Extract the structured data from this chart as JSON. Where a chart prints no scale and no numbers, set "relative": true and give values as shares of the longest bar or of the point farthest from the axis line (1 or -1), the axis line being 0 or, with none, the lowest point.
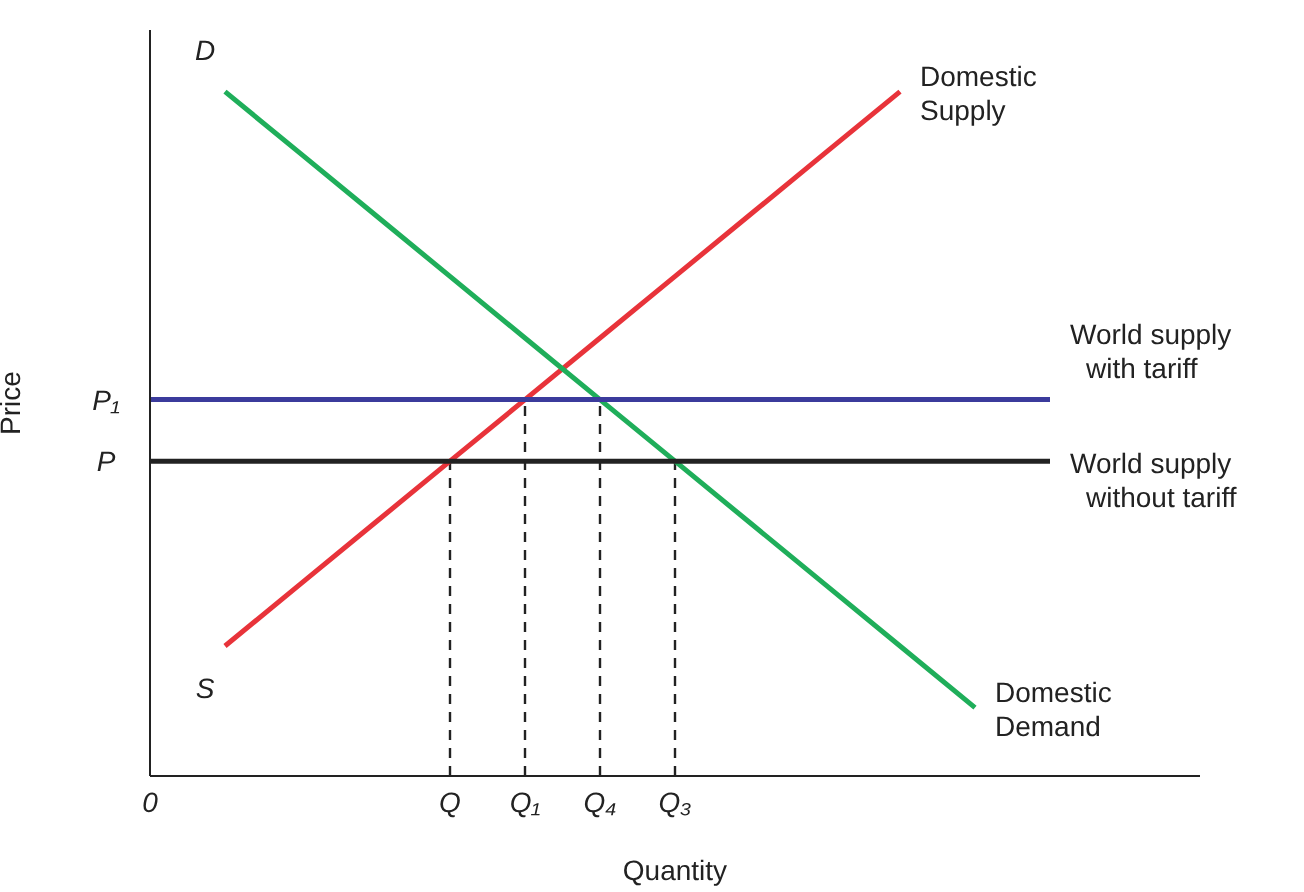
{
  "chart_data": {
    "type": "line",
    "relative": true,
    "xlabel": "Quantity",
    "ylabel": "Price",
    "categories": [
      "0",
      null,
      null,
      null,
      "Q",
      "Q₁",
      "Q₄",
      "Q₃",
      null,
      null,
      null,
      null,
      null,
      null,
      null
    ],
    "legend": false,
    "grid": false,
    "marker": "none",
    "line_style": "solid",
    "annotations": [
      "S",
      "D",
      "P₁",
      "P"
    ],
    "ref_lines": [
      {
        "axis": "x",
        "value": "Q",
        "color": "#222222",
        "line_style": "dashed"
      },
      {
        "axis": "x",
        "value": "Q₁",
        "color": "#222222",
        "line_style": "dashed"
      },
      {
        "axis": "x",
        "value": "Q₄",
        "color": "#222222",
        "line_style": "dashed"
      },
      {
        "axis": "x",
        "value": "Q₃",
        "color": "#222222",
        "line_style": "dashed"
      }
    ],
    "series": [
      {
        "name": "Domestic Supply",
        "color": "#e8333a",
        "values": [
          null,
          0.19,
          0.28,
          0.37,
          0.46,
          0.55,
          0.64,
          0.73,
          0.82,
          0.91,
          1.0,
          null,
          null,
          null,
          null
        ]
      },
      {
        "name": "Domestic Demand",
        "color": "#1fae5a",
        "values": [
          null,
          1.0,
          0.91,
          0.82,
          0.73,
          0.64,
          0.55,
          0.46,
          0.37,
          0.28,
          0.19,
          0.1,
          null,
          null,
          null
        ]
      },
      {
        "name": "World supply with tariff",
        "color": "#3b3b9c",
        "values": [
          0.55,
          0.55,
          0.55,
          0.55,
          0.55,
          0.55,
          0.55,
          0.55,
          0.55,
          0.55,
          0.55,
          0.55,
          0.55,
          null,
          null
        ]
      },
      {
        "name": "World supply without tariff",
        "color": "#222222",
        "values": [
          0.46,
          0.46,
          0.46,
          0.46,
          0.46,
          0.46,
          0.46,
          0.46,
          0.46,
          0.46,
          0.46,
          0.46,
          0.46,
          null,
          null
        ]
      }
    ]
  }
}
